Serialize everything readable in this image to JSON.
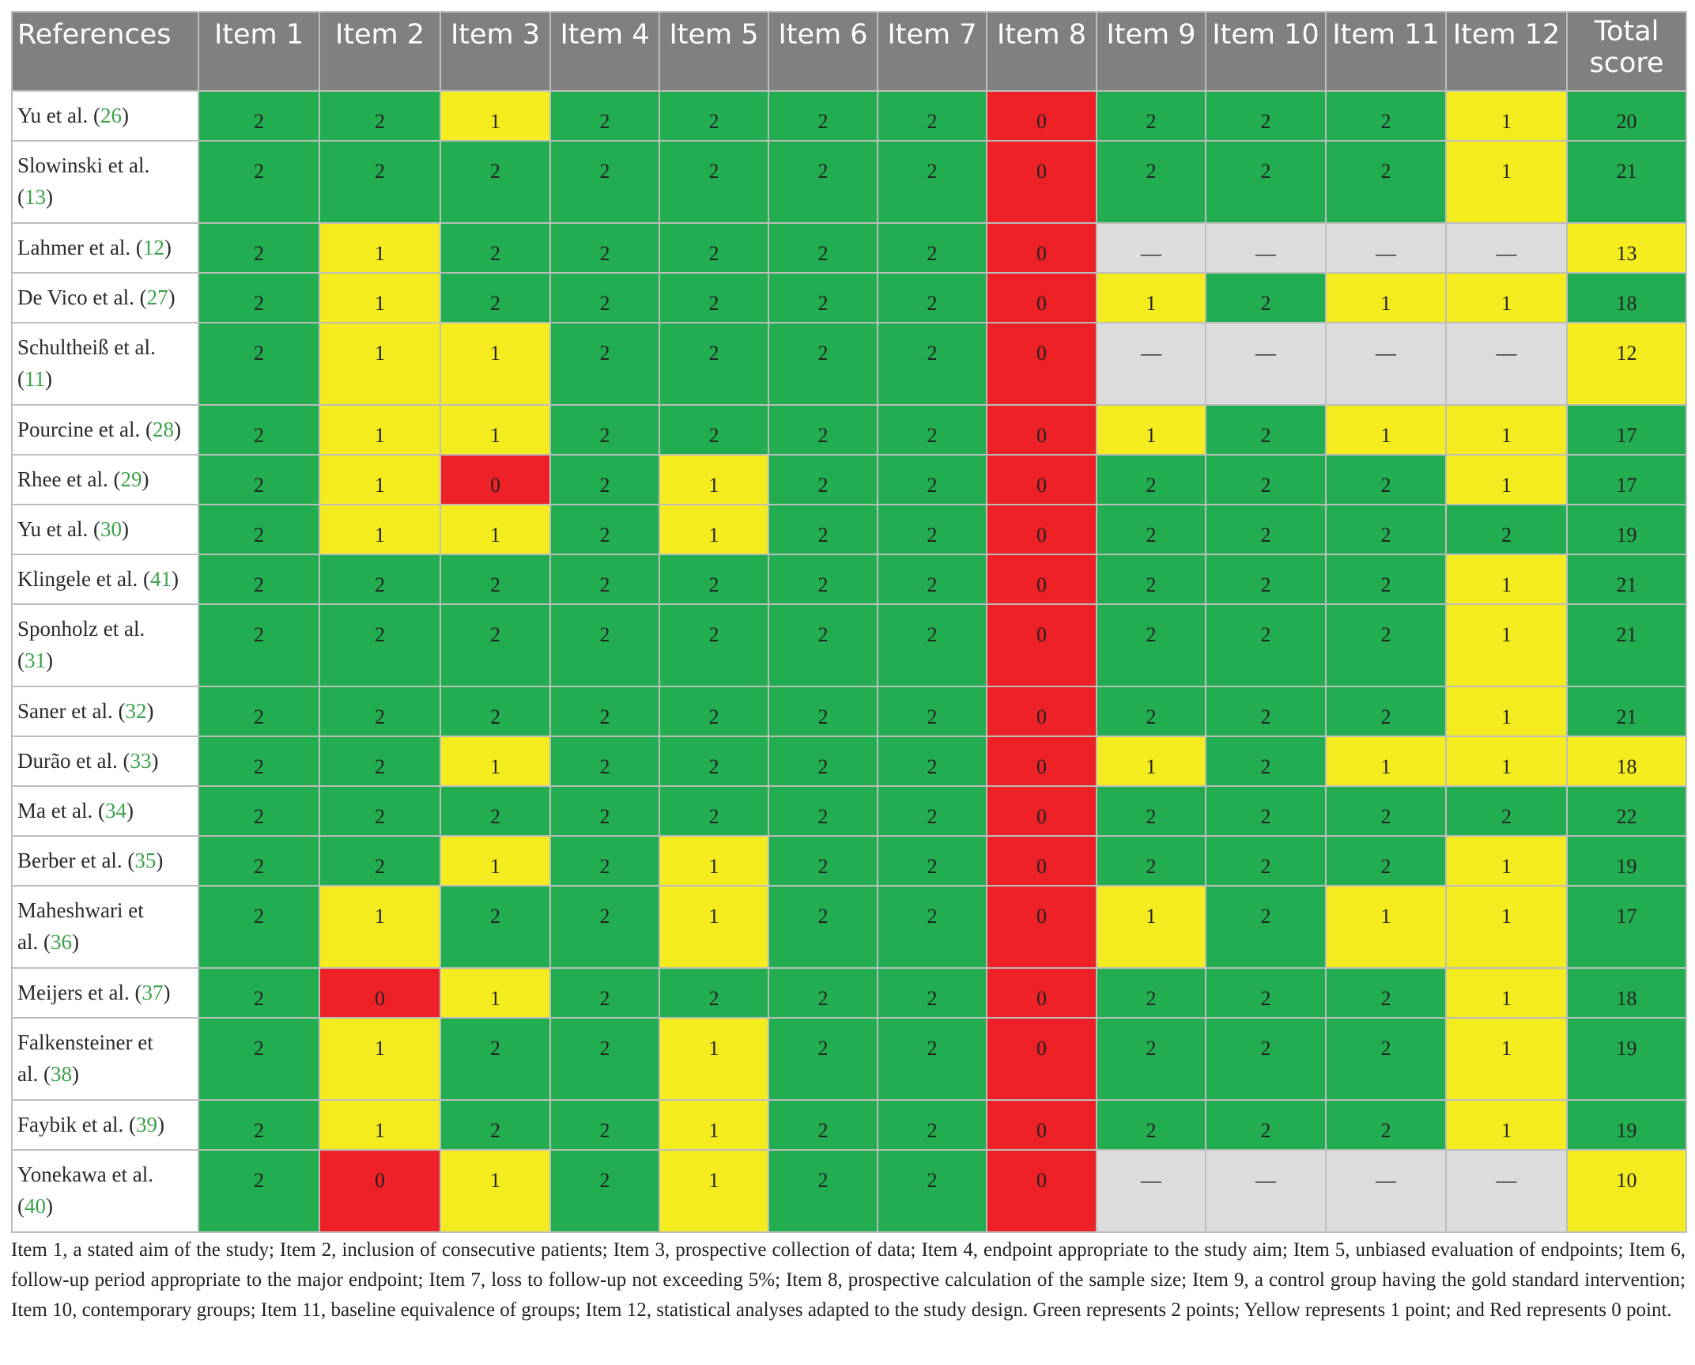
{
  "table": {
    "headers": [
      "References",
      "Item 1",
      "Item 2",
      "Item 3",
      "Item 4",
      "Item 5",
      "Item 6",
      "Item 7",
      "Item 8",
      "Item 9",
      "Item 10",
      "Item 11",
      "Item 12",
      "Total score"
    ],
    "colors": {
      "g": "#22ad50",
      "y": "#f4ec1e",
      "r": "#ee2126",
      "n": "#dcdcdc",
      "header_bg": "#808080",
      "citation": "#3aa24a"
    },
    "rows": [
      {
        "ref": "Yu et al. (",
        "cite": "26",
        "close": ")",
        "lines": 1,
        "cells": [
          "2",
          "2",
          "1",
          "2",
          "2",
          "2",
          "2",
          "0",
          "2",
          "2",
          "2",
          "1"
        ],
        "total": "20",
        "total_color": "g"
      },
      {
        "ref": "Slowinski et al. (",
        "cite": "13",
        "close": ")",
        "lines": 2,
        "cells": [
          "2",
          "2",
          "2",
          "2",
          "2",
          "2",
          "2",
          "0",
          "2",
          "2",
          "2",
          "1"
        ],
        "total": "21",
        "total_color": "g"
      },
      {
        "ref": "Lahmer et al. (",
        "cite": "12",
        "close": ")",
        "lines": 1,
        "cells": [
          "2",
          "1",
          "2",
          "2",
          "2",
          "2",
          "2",
          "0",
          "—",
          "—",
          "—",
          "—"
        ],
        "total": "13",
        "total_color": "y"
      },
      {
        "ref": "De Vico et al. (",
        "cite": "27",
        "close": ")",
        "lines": 1,
        "cells": [
          "2",
          "1",
          "2",
          "2",
          "2",
          "2",
          "2",
          "0",
          "1",
          "2",
          "1",
          "1"
        ],
        "total": "18",
        "total_color": "g"
      },
      {
        "ref": "Schultheiß et al. (",
        "cite": "11",
        "close": ")",
        "lines": 2,
        "cells": [
          "2",
          "1",
          "1",
          "2",
          "2",
          "2",
          "2",
          "0",
          "—",
          "—",
          "—",
          "—"
        ],
        "total": "12",
        "total_color": "y"
      },
      {
        "ref": "Pourcine et al. (",
        "cite": "28",
        "close": ")",
        "lines": 1,
        "cells": [
          "2",
          "1",
          "1",
          "2",
          "2",
          "2",
          "2",
          "0",
          "1",
          "2",
          "1",
          "1"
        ],
        "total": "17",
        "total_color": "g"
      },
      {
        "ref": "Rhee et al. (",
        "cite": "29",
        "close": ")",
        "lines": 1,
        "cells": [
          "2",
          "1",
          "0",
          "2",
          "1",
          "2",
          "2",
          "0",
          "2",
          "2",
          "2",
          "1"
        ],
        "total": "17",
        "total_color": "g"
      },
      {
        "ref": "Yu et al. (",
        "cite": "30",
        "close": ")",
        "lines": 1,
        "cells": [
          "2",
          "1",
          "1",
          "2",
          "1",
          "2",
          "2",
          "0",
          "2",
          "2",
          "2",
          "2"
        ],
        "total": "19",
        "total_color": "g"
      },
      {
        "ref": "Klingele et al. (",
        "cite": "41",
        "close": ")",
        "lines": 1,
        "cells": [
          "2",
          "2",
          "2",
          "2",
          "2",
          "2",
          "2",
          "0",
          "2",
          "2",
          "2",
          "1"
        ],
        "total": "21",
        "total_color": "g"
      },
      {
        "ref": "Sponholz et al. (",
        "cite": "31",
        "close": ")",
        "lines": 2,
        "cells": [
          "2",
          "2",
          "2",
          "2",
          "2",
          "2",
          "2",
          "0",
          "2",
          "2",
          "2",
          "1"
        ],
        "total": "21",
        "total_color": "g"
      },
      {
        "ref": "Saner et al. (",
        "cite": "32",
        "close": ")",
        "lines": 1,
        "cells": [
          "2",
          "2",
          "2",
          "2",
          "2",
          "2",
          "2",
          "0",
          "2",
          "2",
          "2",
          "1"
        ],
        "total": "21",
        "total_color": "g"
      },
      {
        "ref": "Durão et al. (",
        "cite": "33",
        "close": ")",
        "lines": 1,
        "cells": [
          "2",
          "2",
          "1",
          "2",
          "2",
          "2",
          "2",
          "0",
          "1",
          "2",
          "1",
          "1"
        ],
        "total": "18",
        "total_color": "y"
      },
      {
        "ref": "Ma et al. (",
        "cite": "34",
        "close": ")",
        "lines": 1,
        "cells": [
          "2",
          "2",
          "2",
          "2",
          "2",
          "2",
          "2",
          "0",
          "2",
          "2",
          "2",
          "2"
        ],
        "total": "22",
        "total_color": "g"
      },
      {
        "ref": "Berber et al. (",
        "cite": "35",
        "close": ")",
        "lines": 1,
        "cells": [
          "2",
          "2",
          "1",
          "2",
          "1",
          "2",
          "2",
          "0",
          "2",
          "2",
          "2",
          "1"
        ],
        "total": "19",
        "total_color": "g"
      },
      {
        "ref": "Maheshwari et al. (",
        "cite": "36",
        "close": ")",
        "lines": 2,
        "cells": [
          "2",
          "1",
          "2",
          "2",
          "1",
          "2",
          "2",
          "0",
          "1",
          "2",
          "1",
          "1"
        ],
        "total": "17",
        "total_color": "g"
      },
      {
        "ref": "Meijers et al. (",
        "cite": "37",
        "close": ")",
        "lines": 1,
        "cells": [
          "2",
          "0",
          "1",
          "2",
          "2",
          "2",
          "2",
          "0",
          "2",
          "2",
          "2",
          "1"
        ],
        "total": "18",
        "total_color": "g"
      },
      {
        "ref": "Falkensteiner et al. (",
        "cite": "38",
        "close": ")",
        "lines": 2,
        "cells": [
          "2",
          "1",
          "2",
          "2",
          "1",
          "2",
          "2",
          "0",
          "2",
          "2",
          "2",
          "1"
        ],
        "total": "19",
        "total_color": "g"
      },
      {
        "ref": "Faybik et al. (",
        "cite": "39",
        "close": ")",
        "lines": 1,
        "cells": [
          "2",
          "1",
          "2",
          "2",
          "1",
          "2",
          "2",
          "0",
          "2",
          "2",
          "2",
          "1"
        ],
        "total": "19",
        "total_color": "g"
      },
      {
        "ref": "Yonekawa et al. (",
        "cite": "40",
        "close": ")",
        "lines": 2,
        "cells": [
          "2",
          "0",
          "1",
          "2",
          "1",
          "2",
          "2",
          "0",
          "—",
          "—",
          "—",
          "—"
        ],
        "total": "10",
        "total_color": "y"
      }
    ]
  },
  "footnote": "Item 1, a stated aim of the study; Item 2, inclusion of consecutive patients; Item 3, prospective collection of data; Item 4, endpoint appropriate to the study aim; Item 5, unbiased evaluation of endpoints; Item 6, follow-up period appropriate to the major endpoint; Item 7, loss to follow-up not exceeding 5%; Item 8, prospective calculation of the sample size; Item 9, a control group having the gold standard intervention; Item 10, contemporary groups; Item 11, baseline equivalence of groups; Item 12, statistical analyses adapted to the study design. Green represents 2 points; Yellow represents 1 point; and Red represents 0 point."
}
